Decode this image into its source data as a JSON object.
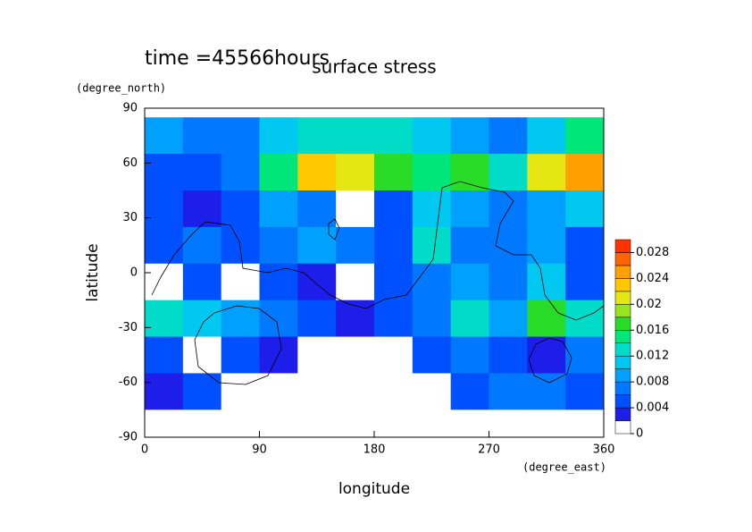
{
  "chart_data": {
    "type": "contour",
    "title": "surface stress",
    "subtitle": "time =45566hours",
    "xlabel": "longitude",
    "ylabel": "latitude",
    "xunit": "(degree_east)",
    "yunit": "(degree_north)",
    "xlim": [
      0,
      360
    ],
    "ylim": [
      -90,
      90
    ],
    "xticks": [
      0,
      90,
      180,
      270,
      360
    ],
    "yticks": [
      -90,
      -60,
      -30,
      0,
      30,
      60,
      90
    ],
    "lon": [
      15,
      45,
      75,
      105,
      135,
      165,
      195,
      225,
      255,
      285,
      315,
      345
    ],
    "lat": [
      75,
      55,
      35,
      15,
      -5,
      -25,
      -45,
      -65,
      -85
    ],
    "z": [
      [
        0.008,
        0.006,
        0.006,
        0.01,
        0.012,
        0.012,
        0.012,
        0.01,
        0.008,
        0.006,
        0.01,
        0.014
      ],
      [
        0.004,
        0.004,
        0.006,
        0.014,
        0.022,
        0.02,
        0.016,
        0.014,
        0.016,
        0.012,
        0.02,
        0.024
      ],
      [
        0.004,
        0.002,
        0.004,
        0.008,
        0.006,
        0,
        0.004,
        0.01,
        0.008,
        0.006,
        0.008,
        0.01
      ],
      [
        0.004,
        0.006,
        0.004,
        0.006,
        0.008,
        0.006,
        0.004,
        0.012,
        0.006,
        0.006,
        0.008,
        0.004
      ],
      [
        0,
        0.004,
        0,
        0.004,
        0.002,
        0,
        0.004,
        0.006,
        0.008,
        0.006,
        0.01,
        0.004
      ],
      [
        0.012,
        0.01,
        0.008,
        0.006,
        0.004,
        0.002,
        0.004,
        0.006,
        0.012,
        0.008,
        0.016,
        0.012
      ],
      [
        0.004,
        0,
        0.004,
        0.002,
        0,
        0,
        0,
        0.004,
        0.006,
        0.004,
        0.002,
        0.006
      ],
      [
        0.002,
        0.004,
        0,
        0,
        0,
        0,
        0,
        0,
        0.004,
        0.006,
        0.006,
        0.004
      ],
      [
        0,
        0,
        0,
        0,
        0,
        0,
        0,
        0,
        0,
        0,
        0,
        0
      ]
    ],
    "levels": [
      0,
      0.002,
      0.004,
      0.006,
      0.008,
      0.01,
      0.012,
      0.014,
      0.016,
      0.018,
      0.02,
      0.022,
      0.024,
      0.026,
      0.028,
      0.03
    ],
    "colors": [
      "#ffffff",
      "#1e1eeb",
      "#0050ff",
      "#0078ff",
      "#00a0ff",
      "#00c8f0",
      "#00dcc8",
      "#00e678",
      "#28dc28",
      "#96e61e",
      "#e6e614",
      "#ffc800",
      "#ffa000",
      "#ff6400",
      "#ff3200"
    ],
    "cbar_ticks": [
      0,
      0.004,
      0.008,
      0.012,
      0.016,
      0.02,
      0.024,
      0.028
    ]
  }
}
